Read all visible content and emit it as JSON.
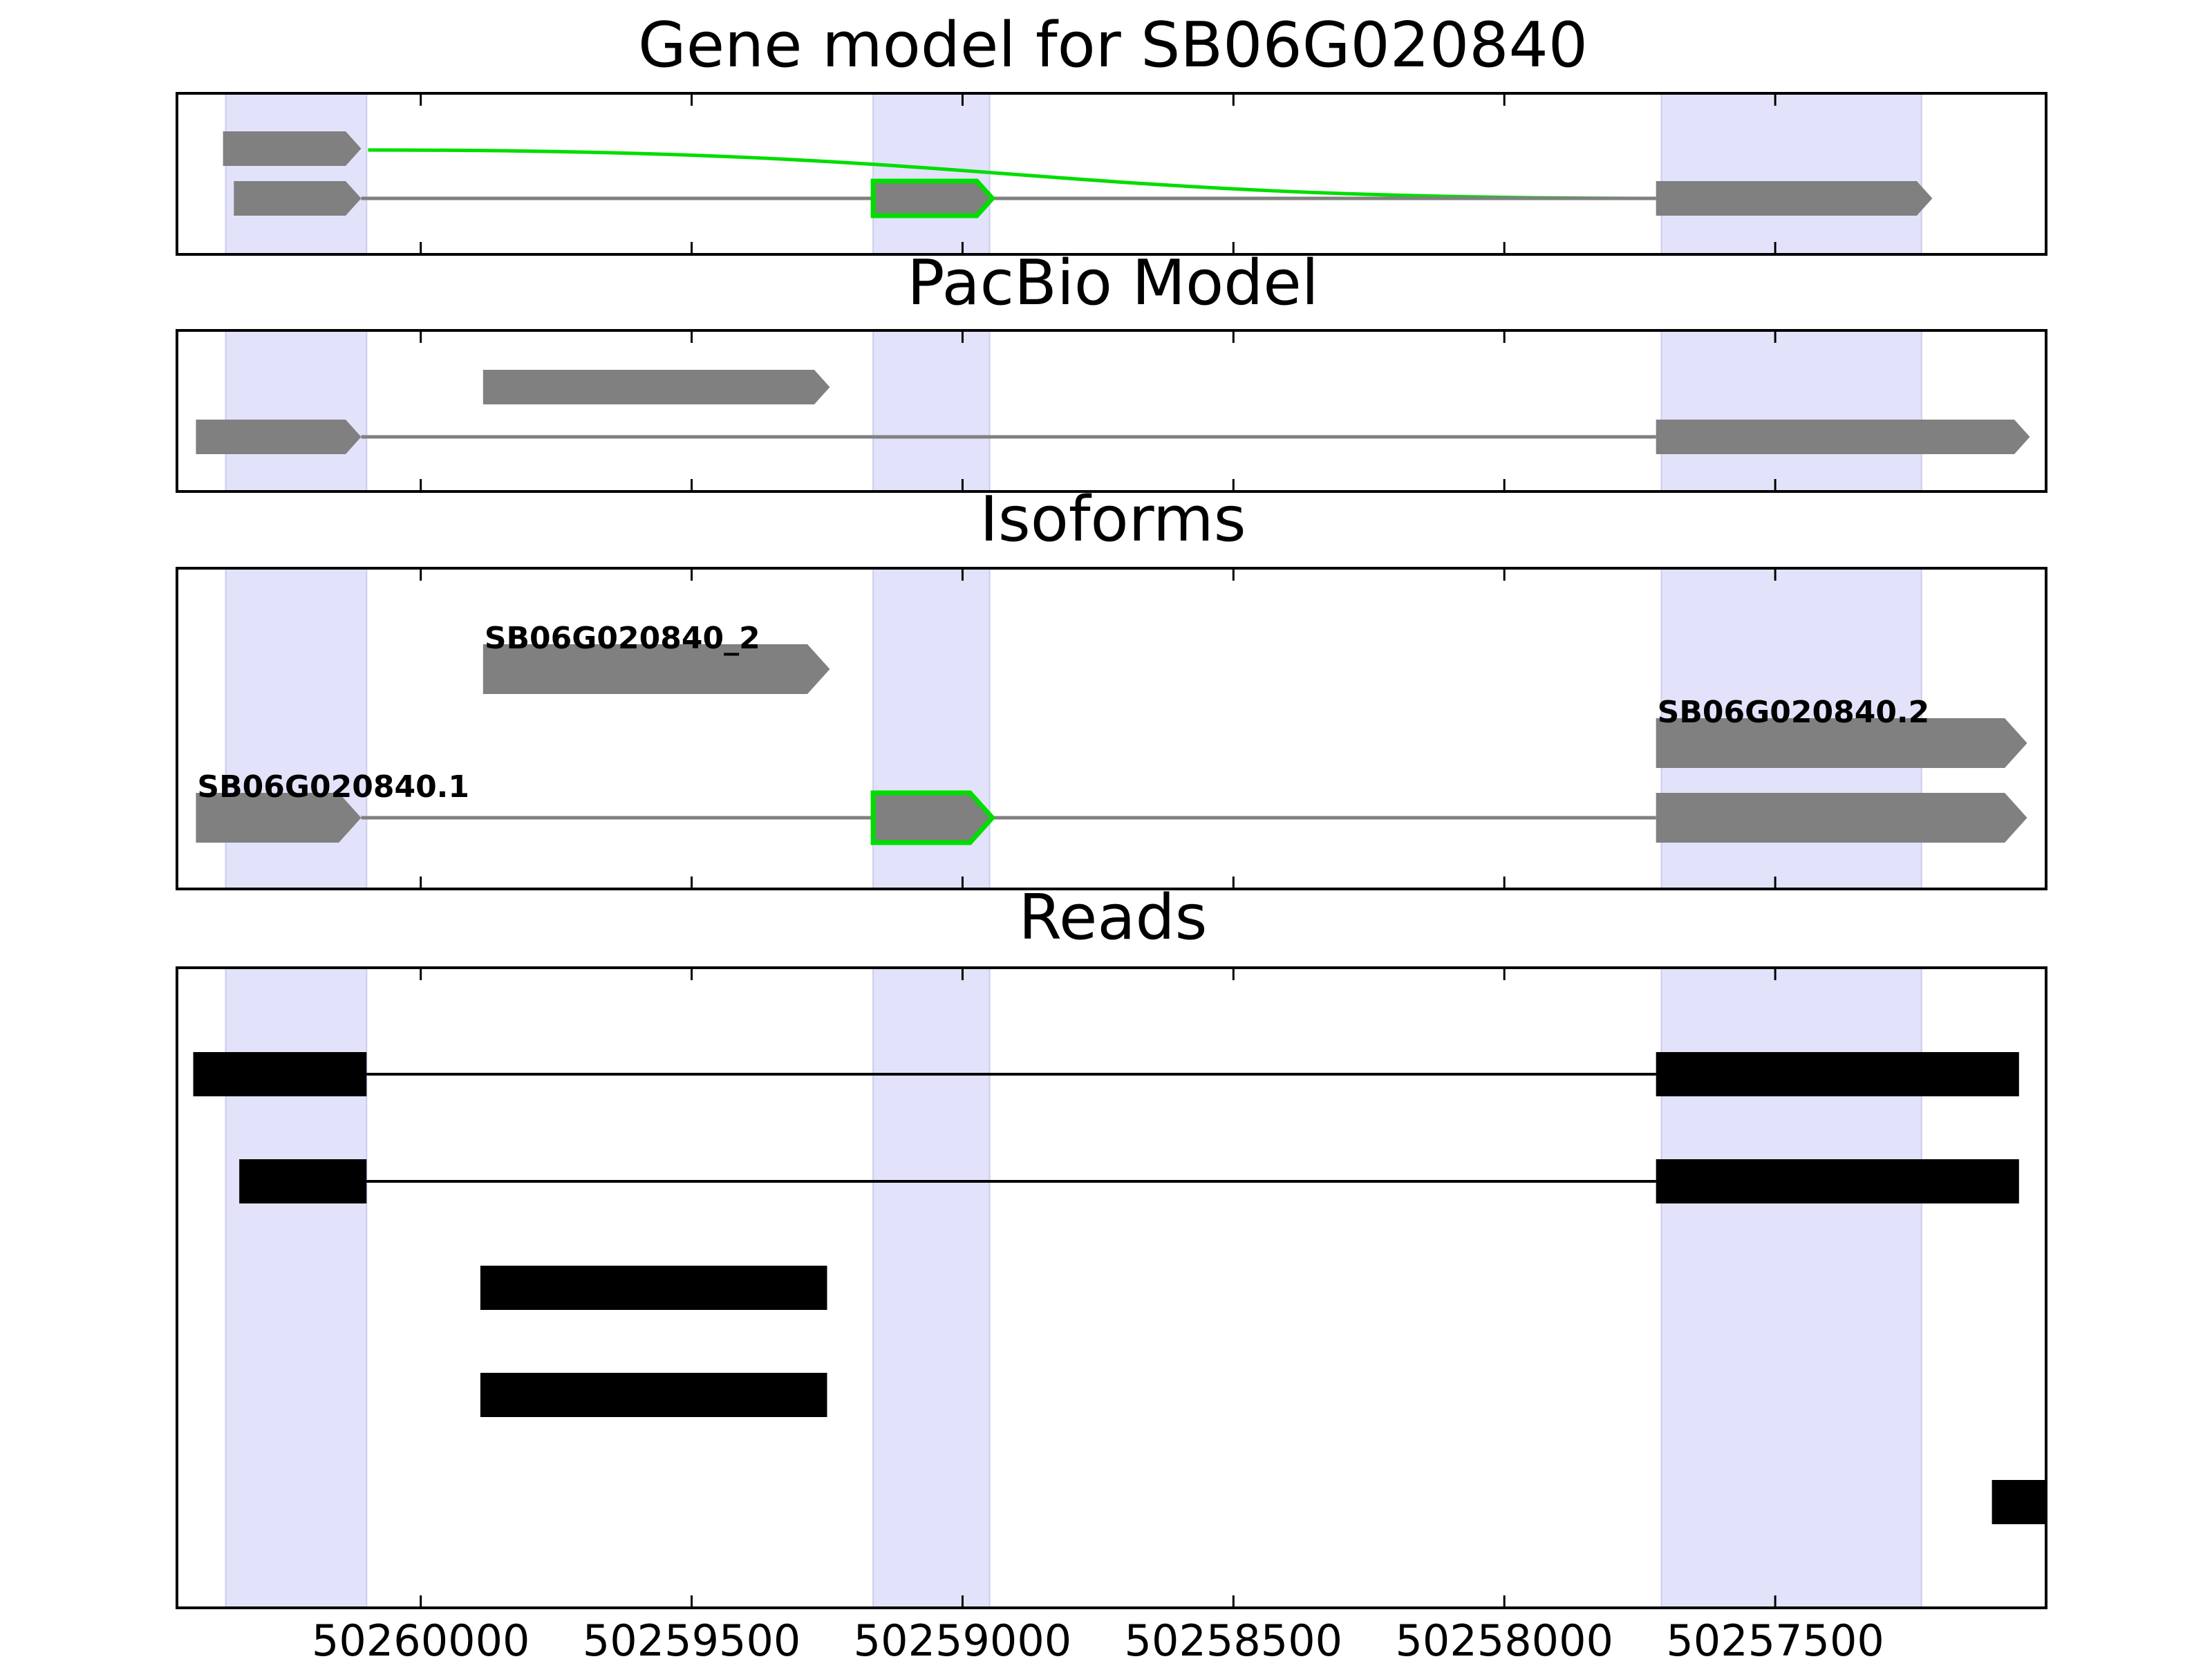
{
  "chart_data": {
    "type": "gene-track",
    "title": "Gene model for SB06G020840",
    "x_axis": {
      "reversed": true,
      "range": [
        50260450,
        50257000
      ],
      "ticks": [
        50260000,
        50259500,
        50259000,
        50258500,
        50258000,
        50257500
      ],
      "tick_labels": [
        "50260000",
        "50259500",
        "50259000",
        "50258500",
        "50258000",
        "50257500"
      ]
    },
    "colors": {
      "exon": "#808080",
      "highlight": "#00dd00",
      "read": "#000000",
      "shade": "#e2e2fa",
      "intron": "#808080"
    },
    "shaded_regions": [
      [
        50260360,
        50260100
      ],
      [
        50259165,
        50258950
      ],
      [
        50257710,
        50257230
      ]
    ],
    "panels": [
      {
        "id": "gene-model",
        "title": "",
        "tracks": [
          {
            "exons": [
              [
                50260365,
                50260110
              ]
            ],
            "connector": "curve",
            "curve_to": 50257720
          },
          {
            "exons": [
              [
                50260345,
                50260110
              ],
              [
                50259165,
                50258945
              ],
              [
                50257720,
                50257210
              ]
            ],
            "highlight_exon": 1
          }
        ]
      },
      {
        "id": "pacbio-model",
        "title": "PacBio Model",
        "tracks": [
          {
            "exons": [
              [
                50259885,
                50259245
              ]
            ]
          },
          {
            "exons": [
              [
                50260415,
                50260110
              ],
              [
                50257720,
                50257030
              ]
            ]
          }
        ]
      },
      {
        "id": "isoforms",
        "title": "Isoforms",
        "tracks": [
          {
            "label": "SB06G020840_2",
            "exons": [
              [
                50259885,
                50259245
              ]
            ]
          },
          {
            "label": "SB06G020840.2",
            "exons": [
              [
                50257720,
                50257035
              ]
            ]
          },
          {
            "label": "SB06G020840.1",
            "exons": [
              [
                50260415,
                50260110
              ],
              [
                50259165,
                50258945
              ],
              [
                50257720,
                50257035
              ]
            ],
            "highlight_exon": 1
          }
        ]
      },
      {
        "id": "reads",
        "title": "Reads",
        "tracks": [
          {
            "exons": [
              [
                50260420,
                50260100
              ],
              [
                50257720,
                50257050
              ]
            ]
          },
          {
            "exons": [
              [
                50260335,
                50260100
              ],
              [
                50257720,
                50257050
              ]
            ]
          },
          {
            "exons": [
              [
                50259890,
                50259250
              ]
            ]
          },
          {
            "exons": [
              [
                50259890,
                50259250
              ]
            ]
          },
          {
            "exons": [
              [
                50257100,
                50257000
              ]
            ]
          }
        ]
      }
    ]
  }
}
